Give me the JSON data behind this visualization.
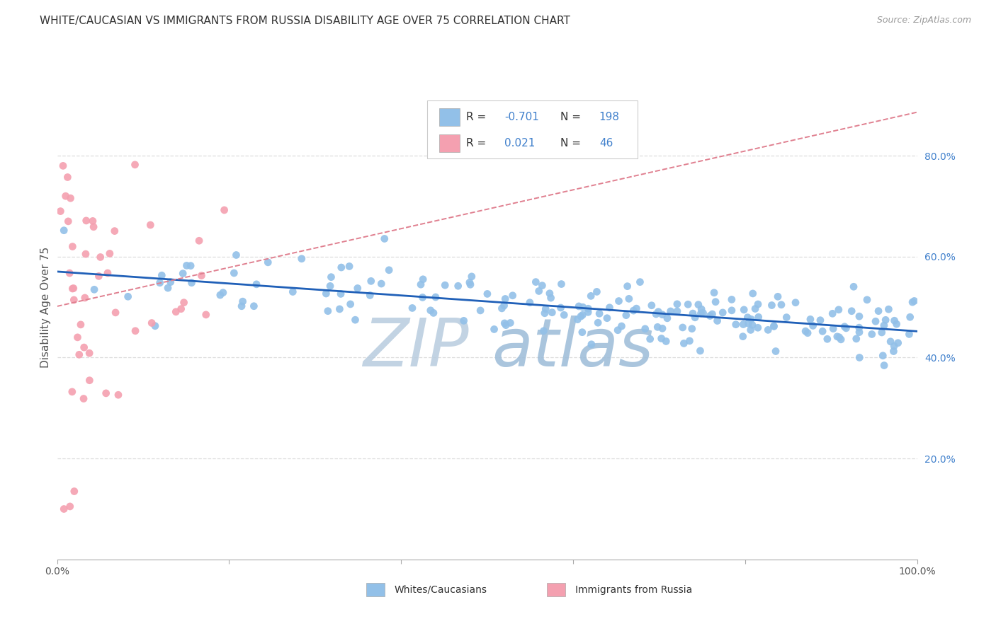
{
  "title": "WHITE/CAUCASIAN VS IMMIGRANTS FROM RUSSIA DISABILITY AGE OVER 75 CORRELATION CHART",
  "source": "Source: ZipAtlas.com",
  "ylabel": "Disability Age Over 75",
  "legend_label1": "Whites/Caucasians",
  "legend_label2": "Immigrants from Russia",
  "r1": "-0.701",
  "n1": "198",
  "r2": "0.021",
  "n2": "46",
  "xlim": [
    0.0,
    1.0
  ],
  "ylim": [
    0.0,
    1.0
  ],
  "xticks": [
    0.0,
    0.2,
    0.4,
    0.6,
    0.8,
    1.0
  ],
  "xticklabels": [
    "0.0%",
    "",
    "",
    "",
    "",
    "100.0%"
  ],
  "yticks_right": [
    0.2,
    0.4,
    0.6,
    0.8
  ],
  "yticklabels_right": [
    "20.0%",
    "40.0%",
    "60.0%",
    "80.0%"
  ],
  "blue_color": "#92C0E8",
  "pink_color": "#F4A0B0",
  "trend_blue_color": "#2060B8",
  "trend_pink_color": "#E08090",
  "grid_color": "#DDDDDD",
  "watermark_text": "ZIPatlas",
  "watermark_color": "#C8D8EE",
  "title_fontsize": 11,
  "source_fontsize": 9,
  "axis_label_fontsize": 10,
  "tick_fontsize": 10,
  "legend_fontsize": 11,
  "right_tick_color": "#4080CC"
}
